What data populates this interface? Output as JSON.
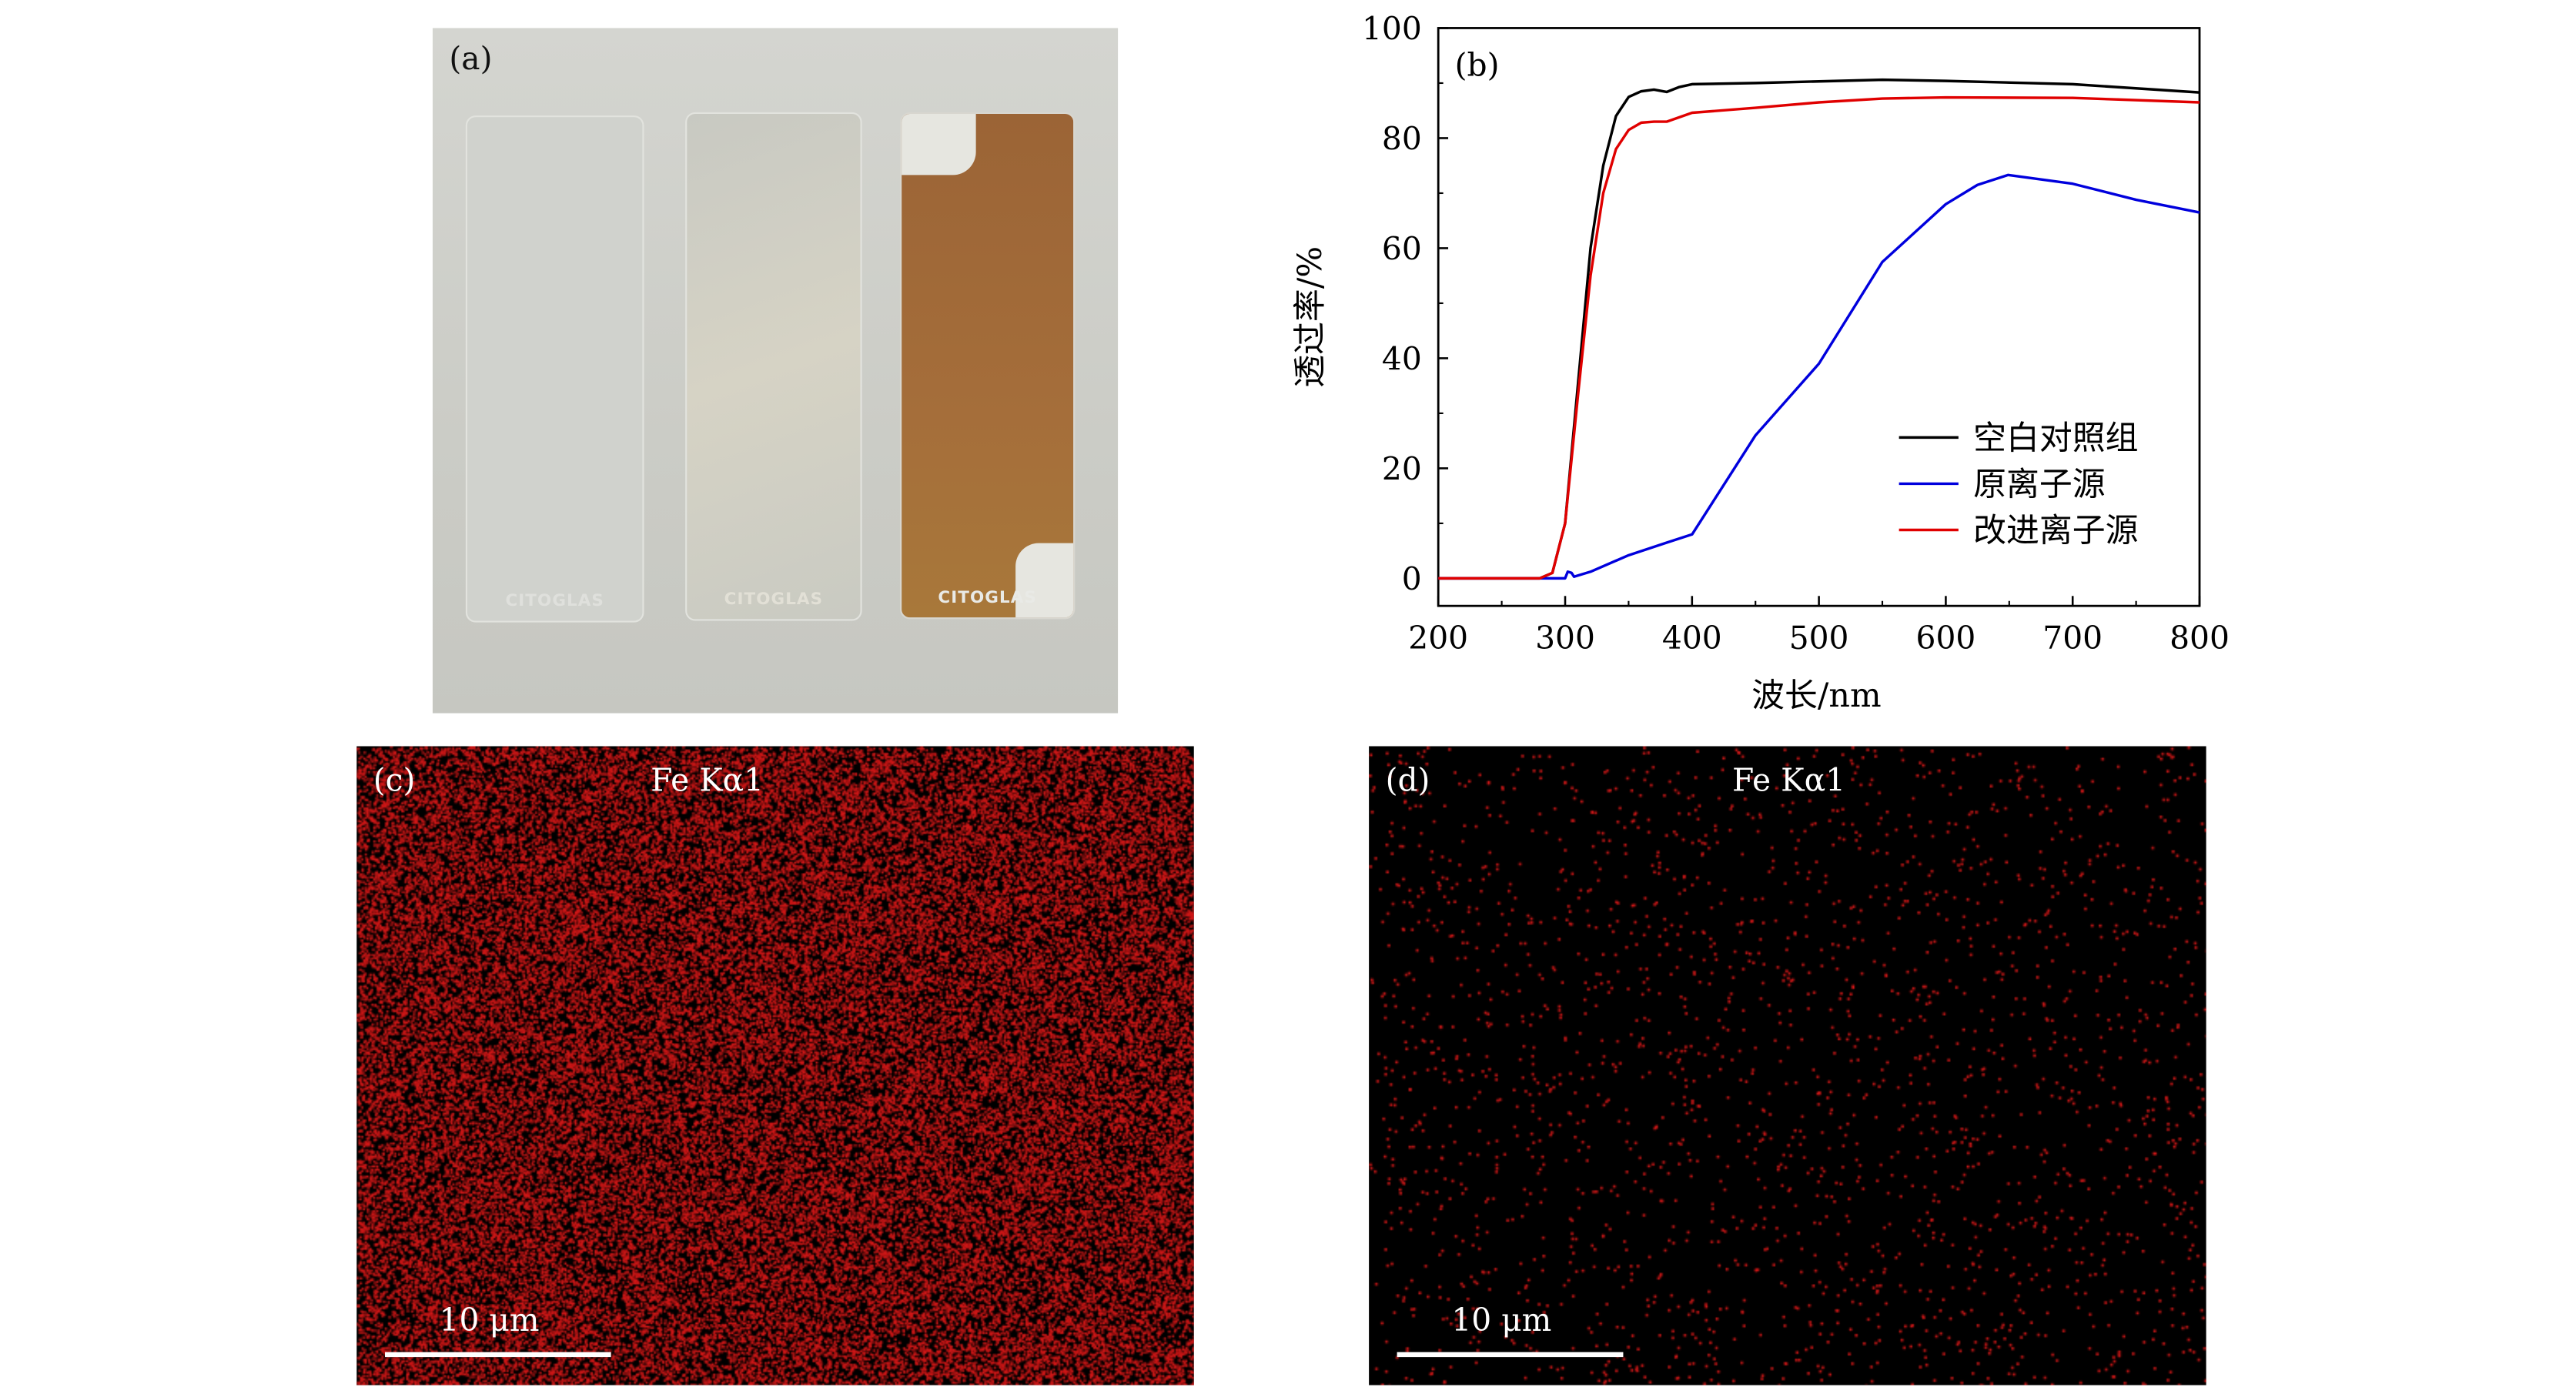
{
  "panel_a": {
    "label": "(a)",
    "slide_brand": "CITOGLAS"
  },
  "panel_c": {
    "label": "(c)",
    "element": "Fe Kα1",
    "scale_bar": "10 μm",
    "dot_color": "#d01818",
    "density": "high"
  },
  "panel_d": {
    "label": "(d)",
    "element": "Fe Kα1",
    "scale_bar": "10 μm",
    "dot_color": "#d01818",
    "density": "low"
  },
  "chart_data": {
    "type": "line",
    "panel_label": "(b)",
    "xlabel": "波长/nm",
    "ylabel": "透过率/%",
    "xlim": [
      200,
      800
    ],
    "ylim": [
      -5,
      100
    ],
    "xticks": [
      200,
      300,
      400,
      500,
      600,
      700,
      800
    ],
    "yticks": [
      0,
      20,
      40,
      60,
      80,
      100
    ],
    "legend_position": "lower-right",
    "series": [
      {
        "name": "空白对照组",
        "color": "#000000",
        "x": [
          200,
          280,
          290,
          300,
          310,
          320,
          330,
          340,
          350,
          360,
          370,
          380,
          390,
          400,
          450,
          500,
          550,
          600,
          700,
          800
        ],
        "y": [
          0,
          0,
          1,
          10,
          35,
          60,
          75,
          84,
          87.5,
          88.5,
          88.8,
          88.4,
          89.3,
          89.8,
          90,
          90.3,
          90.6,
          90.4,
          89.8,
          88.3
        ]
      },
      {
        "name": "原离子源",
        "color": "#0000dd",
        "x": [
          200,
          300,
          302,
          305,
          307,
          320,
          350,
          380,
          400,
          450,
          500,
          550,
          600,
          625,
          649,
          700,
          750,
          800
        ],
        "y": [
          0,
          0,
          1.2,
          1,
          0.3,
          1.2,
          4.2,
          6.5,
          8,
          26,
          39,
          57.5,
          68,
          71.5,
          73.3,
          71.7,
          68.8,
          66.5
        ]
      },
      {
        "name": "改进离子源",
        "color": "#e00000",
        "x": [
          200,
          280,
          290,
          300,
          310,
          320,
          330,
          340,
          350,
          360,
          370,
          380,
          400,
          450,
          500,
          550,
          600,
          700,
          800
        ],
        "y": [
          0,
          0,
          1,
          10,
          33,
          55,
          70,
          78,
          81.5,
          82.8,
          83,
          83,
          84.6,
          85.5,
          86.5,
          87.2,
          87.4,
          87.3,
          86.5
        ]
      }
    ]
  }
}
